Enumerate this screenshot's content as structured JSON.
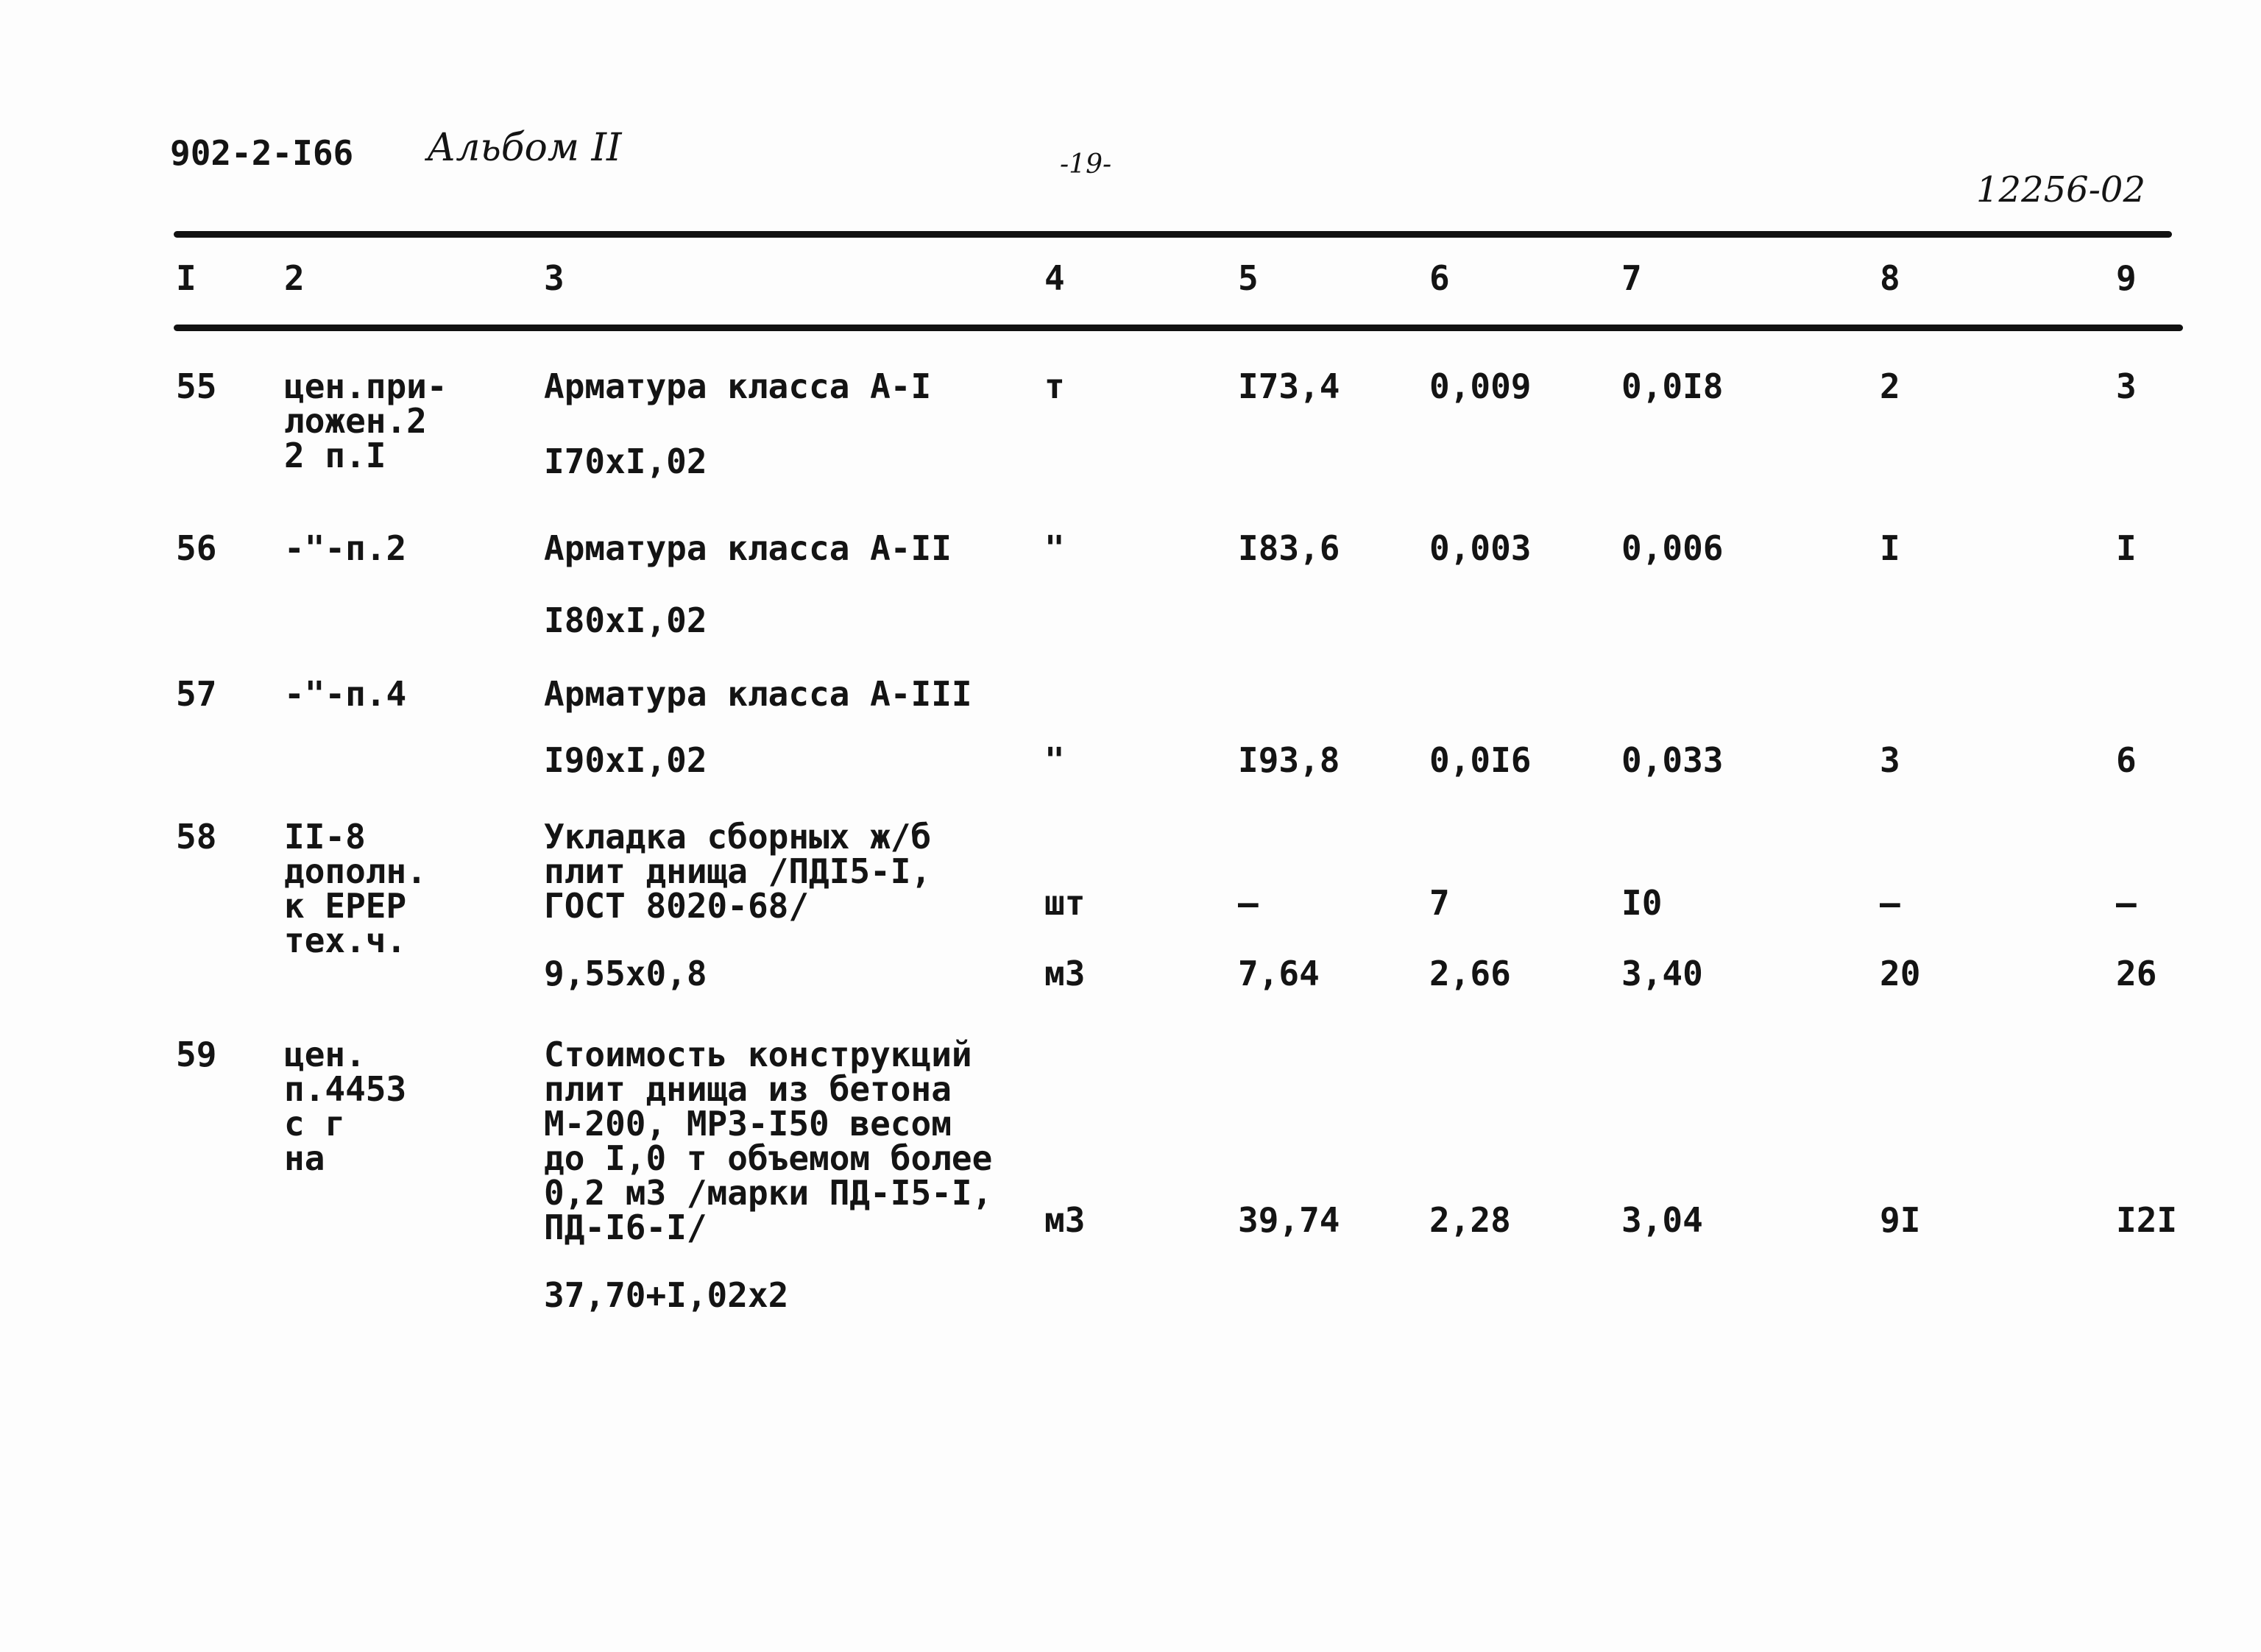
{
  "header": {
    "code": "902-2-I66",
    "album": "Альбом II",
    "page": "-19-",
    "doc_number": "12256-02"
  },
  "columns": [
    "I",
    "2",
    "3",
    "4",
    "5",
    "6",
    "7",
    "8",
    "9"
  ],
  "rows": [
    {
      "n": "55",
      "ref": "цен.при-\nложен.2\n2 п.I",
      "desc": "Арматура класса А-I",
      "calc": "I70xI,02",
      "unit": "т",
      "c5": "I73,4",
      "c6": "0,009",
      "c7": "0,0I8",
      "c8": "2",
      "c9": "3"
    },
    {
      "n": "56",
      "ref": "-\"-п.2",
      "desc": "Арматура класса А-II",
      "calc": "I80xI,02",
      "unit": "\"",
      "c5": "I83,6",
      "c6": "0,003",
      "c7": "0,006",
      "c8": "I",
      "c9": "I"
    },
    {
      "n": "57",
      "ref": "-\"-п.4",
      "desc": "Арматура класса А-III",
      "calc": "I90xI,02",
      "unit": "\"",
      "c5": "I93,8",
      "c6": "0,0I6",
      "c7": "0,033",
      "c8": "3",
      "c9": "6"
    },
    {
      "n": "58",
      "ref": "II-8\nдополн.\nк ЕРЕР\nтех.ч.",
      "desc": "Укладка сборных ж/б\nплит днища /ПДI5-I,\nГОСТ 8020-68/",
      "calc": "9,55x0,8",
      "unit": "шт",
      "c5": "—",
      "c6": "7",
      "c7": "I0",
      "c8": "—",
      "c9": "—",
      "unit2": "м3",
      "d5": "7,64",
      "d6": "2,66",
      "d7": "3,40",
      "d8": "20",
      "d9": "26"
    },
    {
      "n": "59",
      "ref": "цен.\nп.4453\nс г\nна",
      "desc": "Стоимость конструкций\nплит днища из бетона\nМ-200, МРЗ-I50 весом\nдо I,0 т объемом более\n0,2 м3 /марки ПД-I5-I,\nПД-I6-I/",
      "calc": "37,70+I,02x2",
      "unit": "м3",
      "c5": "39,74",
      "c6": "2,28",
      "c7": "3,04",
      "c8": "9I",
      "c9": "I2I"
    }
  ]
}
